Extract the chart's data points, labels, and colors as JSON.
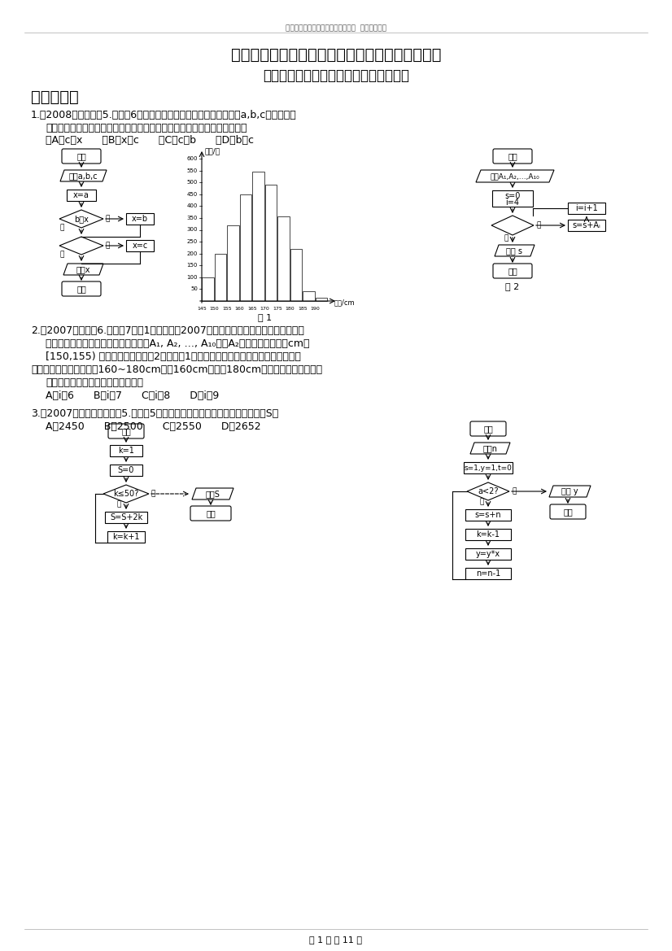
{
  "page_title_small": "数学新课标（人教版）必修三第一章  《算法初步》",
  "page_title_large": "数学新课标（人教版）必修三第一章《算法初步》",
  "page_subtitle": "各省份高考试题、各地高考调研试题集锦",
  "section1": "一、选择题",
  "q1_line1": "1.【2008年宁夏理】5.（文科6）右面的程序框图，如果输入三个实数a,b,c，要求输出",
  "q1_line2": "这三个数中最大的数，那么在空白的判断框中，应该填入下面四个选项中的",
  "q1_options": "（A）c＞x      （B）x＞c      （C）c＞b      （D）b＞c",
  "q2_line1": "2.【2007广东理】6.（文科7）图1是某县参加2007年高考的学生身高条形统计图，从左",
  "q2_line2": "到右的各条形表示的学生人数依次记为A₁, A₂, …, A₁₀（如A₂表示身高（单位：cm）",
  "q2_line3": "[150,155) 内的学生人数）。图2是统计图1中身高在一定范围内学生人数的一个算法",
  "q2_line4": "流程图。现要统计身高在160~180cm（含160cm，不含180cm）的学生人数，那么在",
  "q2_line5": "流程图中的判断框内应填写的条件是",
  "q2_options": "A．i＜6      B．i＜7      C．i＜8      D．i＜9",
  "q3_line1": "3.【2007年海南、宁夏理】5.（文科5）如果执行右面的程序框图，那么输出的S＝",
  "q3_options": "A．2450      B．2500      C．2550      D．2652",
  "fig1_label": "图 1",
  "fig2_label": "图 2",
  "page_footer": "第 1 页 共 11 页",
  "background_color": "#ffffff",
  "bar_heights": [
    100,
    200,
    320,
    450,
    545,
    490,
    355,
    220,
    40,
    15
  ],
  "bar_max": 600,
  "y_ticks": [
    50,
    100,
    150,
    200,
    250,
    300,
    350,
    400,
    450,
    500,
    550,
    600
  ],
  "x_labels": [
    "145",
    "150",
    "155",
    "160",
    "165",
    "170",
    "175",
    "180",
    "185",
    "190"
  ]
}
